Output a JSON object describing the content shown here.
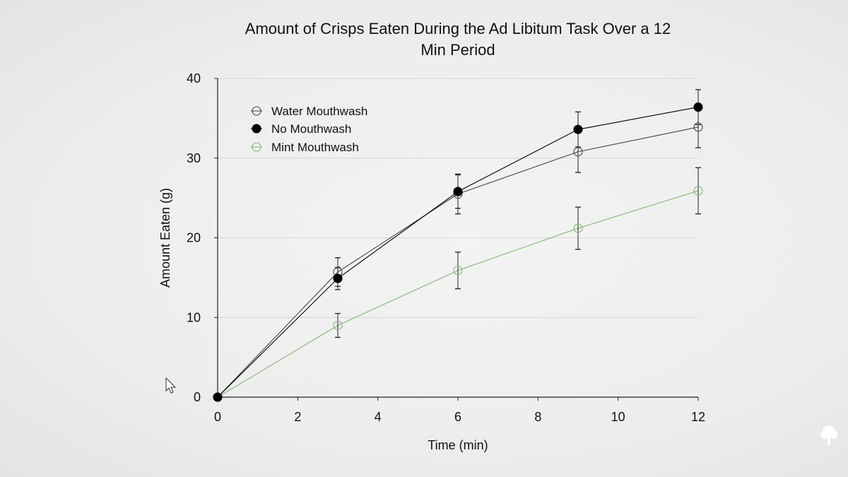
{
  "chart_data": {
    "type": "line",
    "title": "Amount of Crisps Eaten During the Ad Libitum Task Over a 12 Min Period",
    "title_lines": [
      "Amount of Crisps Eaten During the Ad Libitum Task Over a 12",
      "Min Period"
    ],
    "xlabel": "Time (min)",
    "ylabel": "Amount Eaten (g)",
    "xlim": [
      0,
      12
    ],
    "ylim": [
      0,
      40
    ],
    "xticks": [
      0,
      2,
      4,
      6,
      8,
      10,
      12
    ],
    "yticks": [
      0,
      10,
      20,
      30,
      40
    ],
    "grid": "horizontal",
    "legend_position": "top-left",
    "x": [
      0,
      3,
      6,
      9,
      12
    ],
    "series": [
      {
        "name": "Water Mouthwash",
        "marker": "open-circle",
        "color": "#444444",
        "values": [
          0,
          15.7,
          25.5,
          30.8,
          33.9
        ],
        "error": [
          0,
          1.8,
          2.5,
          2.6,
          2.6
        ]
      },
      {
        "name": "No Mouthwash",
        "marker": "filled-circle",
        "color": "#000000",
        "values": [
          0,
          14.9,
          25.8,
          33.6,
          36.4
        ],
        "error": [
          0,
          1.4,
          2.1,
          2.2,
          2.2
        ]
      },
      {
        "name": "Mint Mouthwash",
        "marker": "open-circle",
        "color": "#7fb870",
        "values": [
          0,
          9.0,
          15.9,
          21.2,
          25.9
        ],
        "error": [
          0,
          1.5,
          2.3,
          2.65,
          2.9
        ]
      }
    ]
  }
}
